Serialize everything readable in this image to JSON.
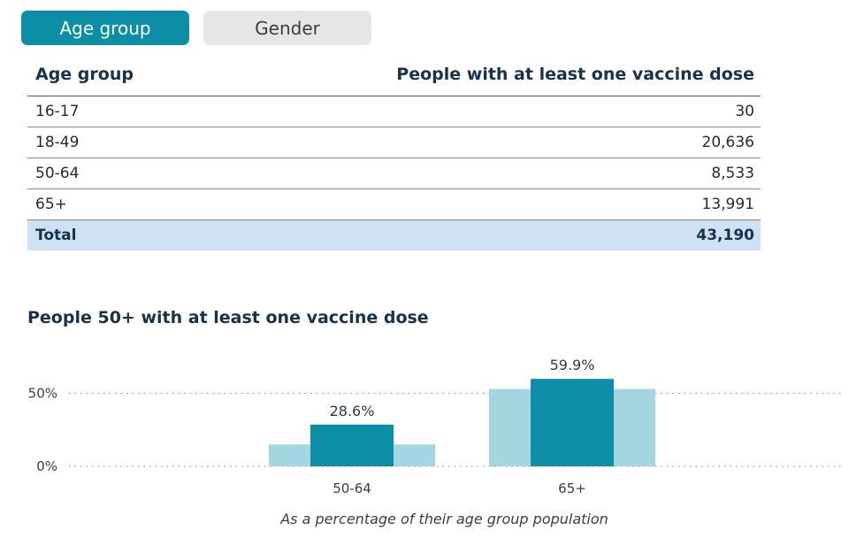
{
  "tabs": [
    {
      "label": "Age group",
      "active": true
    },
    {
      "label": "Gender",
      "active": false
    }
  ],
  "table": {
    "headers": [
      "Age group",
      "People with at least one vaccine dose"
    ],
    "rows": [
      {
        "group": "16-17",
        "value": "30"
      },
      {
        "group": "18-49",
        "value": "20,636"
      },
      {
        "group": "50-64",
        "value": "8,533"
      },
      {
        "group": "65+",
        "value": "13,991"
      }
    ],
    "total": {
      "label": "Total",
      "value": "43,190"
    }
  },
  "chart_data": {
    "type": "bar",
    "title": "People 50+ with at least one vaccine dose",
    "caption": "As a percentage of their age group population",
    "categories": [
      "50-64",
      "65+"
    ],
    "series": [
      {
        "values": [
          28.6,
          59.9
        ],
        "color": "#0d8ea7",
        "labels": [
          "28.6%",
          "59.9%"
        ]
      },
      {
        "values": [
          15,
          53
        ],
        "color": "#a3d6e0"
      }
    ],
    "y_ticks": [
      {
        "value": 0,
        "label": "0%"
      },
      {
        "value": 50,
        "label": "50%"
      }
    ],
    "ylim": [
      0,
      70
    ],
    "grid": "dotted"
  }
}
